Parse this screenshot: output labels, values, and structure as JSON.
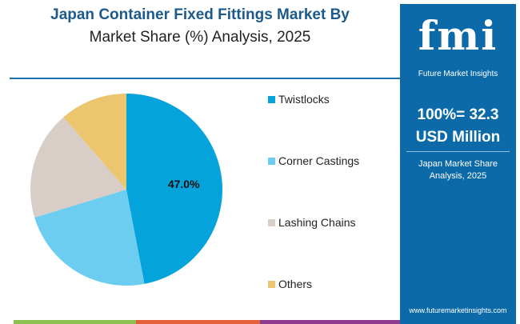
{
  "title": {
    "line1": "Japan Container Fixed Fittings Market By",
    "line2": "Market Share (%) Analysis, 2025"
  },
  "panel": {
    "logo": "fmi",
    "logo_sub": "Future Market Insights",
    "total_line1": "100%= 32.3",
    "total_line2": "USD Million",
    "desc_line1": "Japan Market Share",
    "desc_line2": "Analysis, 2025",
    "url": "www.futuremarketinsights.com"
  },
  "chart_data": {
    "type": "pie",
    "title": "Japan Container Fixed Fittings Market By Market Share (%) Analysis, 2025",
    "categories": [
      "Twistlocks",
      "Corner Castings",
      "Lashing Chains",
      "Others"
    ],
    "values": [
      47.0,
      23.3,
      18.3,
      11.4
    ],
    "colors": [
      "#04a3dc",
      "#6ccdf0",
      "#d9cdc7",
      "#ecc66e"
    ],
    "data_labels": [
      "47.0%",
      "",
      "",
      ""
    ],
    "legend": "right"
  }
}
